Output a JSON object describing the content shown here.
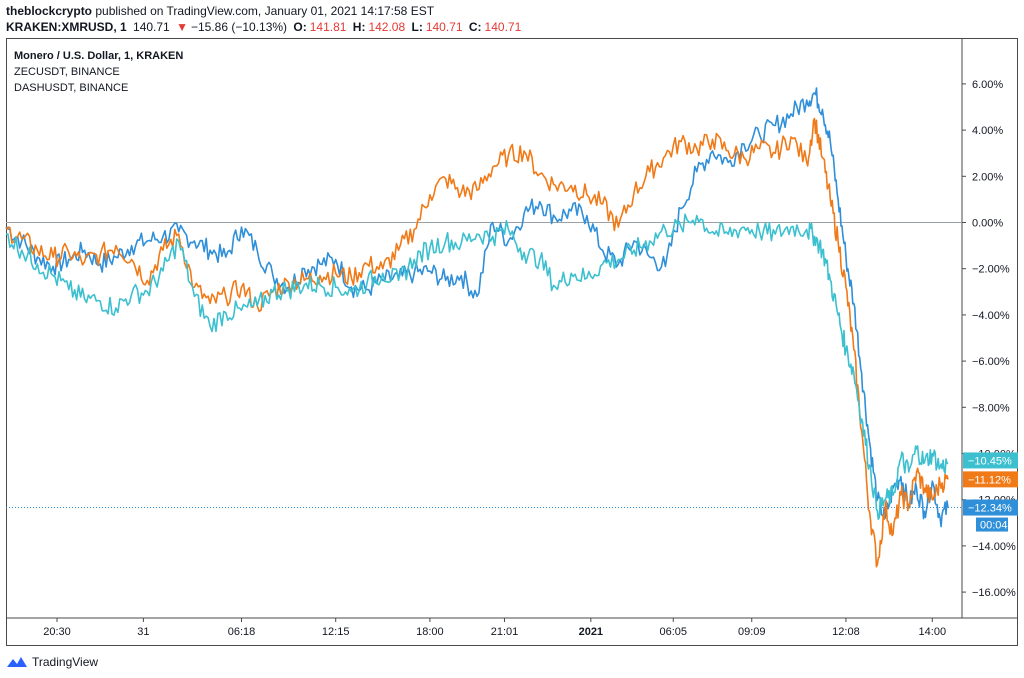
{
  "header": {
    "author": "theblockcrypto",
    "published_text": "published on TradingView.com, January 01, 2021 14:17:58 EST"
  },
  "ticker": {
    "symbol": "KRAKEN:XMRUSD, 1",
    "last": "140.71",
    "change": "−15.86 (−10.13%)",
    "o_label": "O:",
    "o": "141.81",
    "h_label": "H:",
    "h": "142.08",
    "l_label": "L:",
    "l": "140.71",
    "c_label": "C:",
    "c": "140.71"
  },
  "legend": {
    "main": "Monero / U.S. Dollar, 1, KRAKEN",
    "s2": "ZECUSDT, BINANCE",
    "s3": "DASHUSDT, BINANCE"
  },
  "footer": {
    "brand": "TradingView"
  },
  "chart_data": {
    "type": "line",
    "ylim": [
      -17,
      7
    ],
    "y_ticks": [
      "6.00%",
      "4.00%",
      "2.00%",
      "0.00%",
      "−2.00%",
      "−4.00%",
      "−6.00%",
      "−8.00%",
      "−10.00%",
      "−12.00%",
      "−14.00%",
      "−16.00%"
    ],
    "y_tick_values": [
      6,
      4,
      2,
      0,
      -2,
      -4,
      -6,
      -8,
      -10,
      -12,
      -14,
      -16
    ],
    "x_ticks": [
      "20:30",
      "31",
      "06:18",
      "12:15",
      "18:00",
      "21:01",
      "2021",
      "06:05",
      "09:09",
      "12:08",
      "14:00"
    ],
    "x_tick_bold": [
      false,
      false,
      false,
      false,
      false,
      false,
      true,
      false,
      false,
      false,
      false
    ],
    "x_tick_pos": [
      6.5,
      17.5,
      30,
      42,
      54,
      63.5,
      74.5,
      85,
      95,
      107,
      118
    ],
    "x_range": [
      0,
      120
    ],
    "grid": false,
    "series": [
      {
        "color": "#2f8fd8",
        "x": [
          0,
          2,
          4,
          6,
          8,
          10,
          12,
          14,
          16,
          18,
          20,
          22,
          24,
          26,
          28,
          30,
          32,
          34,
          36,
          38,
          40,
          42,
          44,
          46,
          48,
          50,
          52,
          54,
          56,
          58,
          60,
          62,
          64,
          66,
          68,
          70,
          72,
          74,
          76,
          78,
          80,
          82,
          84,
          86,
          88,
          90,
          92,
          94,
          96,
          98,
          100,
          102,
          103,
          104,
          105,
          106,
          107,
          108,
          109,
          110,
          111,
          112,
          113,
          114,
          115,
          116,
          117,
          118,
          119,
          120
        ],
        "y": [
          -0.2,
          -0.8,
          -1.5,
          -1.9,
          -1.6,
          -1.2,
          -1.8,
          -1.5,
          -1.0,
          -0.8,
          -0.6,
          -0.4,
          -0.8,
          -1.2,
          -1.5,
          -0.2,
          -1.2,
          -2.3,
          -2.8,
          -2.0,
          -1.8,
          -1.6,
          -2.8,
          -2.9,
          -2.5,
          -2.4,
          -2.2,
          -2.1,
          -2.5,
          -2.3,
          -3.2,
          0.0,
          -0.8,
          0.4,
          0.9,
          0.2,
          0.5,
          0.3,
          -1.2,
          -1.8,
          -0.8,
          -1.5,
          -1.9,
          0.6,
          2.2,
          3.1,
          2.6,
          3.4,
          3.8,
          4.2,
          4.7,
          5.3,
          5.6,
          4.9,
          3.5,
          1.0,
          -1.5,
          -3.5,
          -6.5,
          -9.5,
          -12.0,
          -12.8,
          -11.5,
          -11.0,
          -12.2,
          -11.5,
          -12.5,
          -11.2,
          -12.8,
          -12.34
        ]
      },
      {
        "color": "#f07a18",
        "x": [
          0,
          2,
          4,
          6,
          8,
          10,
          12,
          14,
          16,
          18,
          20,
          22,
          24,
          26,
          28,
          30,
          32,
          34,
          36,
          38,
          40,
          42,
          44,
          46,
          48,
          50,
          52,
          54,
          56,
          58,
          60,
          62,
          64,
          66,
          68,
          70,
          72,
          74,
          76,
          78,
          80,
          82,
          84,
          86,
          88,
          90,
          92,
          94,
          96,
          98,
          100,
          102,
          103,
          104,
          105,
          106,
          107,
          108,
          109,
          110,
          111,
          112,
          113,
          114,
          115,
          116,
          117,
          118,
          119,
          120
        ],
        "y": [
          -0.3,
          -0.7,
          -1.2,
          -1.5,
          -1.3,
          -1.7,
          -1.4,
          -1.0,
          -1.6,
          -2.5,
          -1.2,
          -0.5,
          -2.8,
          -3.5,
          -3.2,
          -2.8,
          -3.6,
          -3.0,
          -2.6,
          -2.5,
          -2.3,
          -2.2,
          -2.4,
          -1.8,
          -2.0,
          -1.2,
          -0.3,
          1.2,
          1.9,
          1.3,
          1.4,
          2.4,
          2.9,
          3.1,
          2.1,
          1.6,
          1.6,
          1.2,
          0.8,
          -0.2,
          1.3,
          2.2,
          2.9,
          3.5,
          3.2,
          3.6,
          3.1,
          2.8,
          3.2,
          3.0,
          3.7,
          2.6,
          4.5,
          2.8,
          1.0,
          -0.8,
          -2.8,
          -5.5,
          -9.0,
          -12.5,
          -14.8,
          -12.3,
          -13.5,
          -11.8,
          -12.2,
          -10.8,
          -11.5,
          -12.0,
          -11.3,
          -11.12
        ]
      },
      {
        "color": "#3cc0cf",
        "x": [
          0,
          2,
          4,
          6,
          8,
          10,
          12,
          14,
          16,
          18,
          20,
          22,
          24,
          26,
          28,
          30,
          32,
          34,
          36,
          38,
          40,
          42,
          44,
          46,
          48,
          50,
          52,
          54,
          56,
          58,
          60,
          62,
          64,
          66,
          68,
          70,
          72,
          74,
          76,
          78,
          80,
          82,
          84,
          86,
          88,
          90,
          92,
          94,
          96,
          98,
          100,
          102,
          103,
          104,
          105,
          106,
          107,
          108,
          109,
          110,
          111,
          112,
          113,
          114,
          115,
          116,
          117,
          118,
          119,
          120
        ],
        "y": [
          -0.5,
          -1.2,
          -1.8,
          -2.3,
          -2.9,
          -3.3,
          -3.4,
          -3.7,
          -3.1,
          -3.0,
          -2.1,
          -0.8,
          -3.2,
          -4.5,
          -3.9,
          -3.8,
          -3.6,
          -3.0,
          -2.9,
          -2.7,
          -2.7,
          -2.8,
          -3.0,
          -2.6,
          -2.2,
          -2.5,
          -1.6,
          -1.1,
          -0.8,
          -0.9,
          -0.5,
          -0.6,
          -0.3,
          -1.3,
          -1.6,
          -2.8,
          -2.2,
          -2.4,
          -1.8,
          -1.6,
          -1.2,
          -0.8,
          -0.3,
          -0.2,
          0.3,
          -0.4,
          -0.5,
          -0.2,
          -0.4,
          -0.5,
          -0.2,
          -0.3,
          -0.6,
          -1.2,
          -2.5,
          -4.0,
          -5.5,
          -6.5,
          -8.5,
          -10.5,
          -12.5,
          -12.0,
          -11.8,
          -10.2,
          -10.8,
          -9.8,
          -10.4,
          -10.0,
          -10.6,
          -10.45
        ]
      }
    ],
    "last_values": [
      {
        "label": "−10.45%",
        "value": -10.45,
        "color": "#3cc0cf"
      },
      {
        "label": "−11.12%",
        "value": -11.12,
        "color": "#f07a18"
      },
      {
        "label": "−12.34%",
        "value": -12.34,
        "color": "#2f8fd8"
      }
    ],
    "countdown": "00:04",
    "zero_line": 0,
    "ref_line": -12.34
  }
}
